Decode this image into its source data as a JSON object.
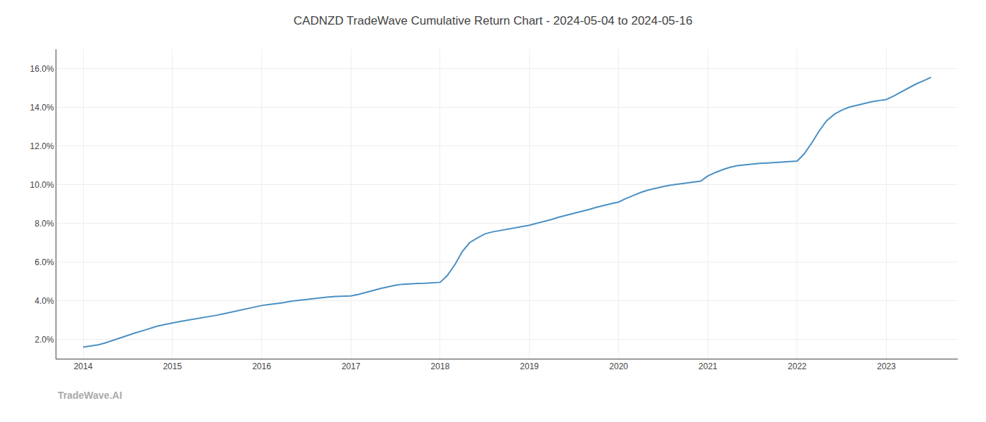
{
  "chart_data": {
    "type": "line",
    "title": "CADNZD TradeWave Cumulative Return Chart - 2024-05-04 to 2024-05-16",
    "annotations": [
      "TradeWave.AI"
    ],
    "color": "#4a90c4",
    "grid": true,
    "x": [
      2014.0,
      2014.08,
      2014.17,
      2014.25,
      2014.33,
      2014.42,
      2014.5,
      2014.58,
      2014.67,
      2014.75,
      2014.83,
      2014.92,
      2015.0,
      2015.08,
      2015.17,
      2015.25,
      2015.33,
      2015.42,
      2015.5,
      2015.58,
      2015.67,
      2015.75,
      2015.83,
      2015.92,
      2016.0,
      2016.08,
      2016.17,
      2016.25,
      2016.33,
      2016.42,
      2016.5,
      2016.58,
      2016.67,
      2016.75,
      2016.83,
      2016.92,
      2017.0,
      2017.08,
      2017.17,
      2017.25,
      2017.33,
      2017.42,
      2017.5,
      2017.58,
      2017.67,
      2017.75,
      2017.83,
      2017.92,
      2018.0,
      2018.08,
      2018.17,
      2018.25,
      2018.33,
      2018.42,
      2018.5,
      2018.58,
      2018.67,
      2018.75,
      2018.83,
      2018.92,
      2019.0,
      2019.08,
      2019.17,
      2019.25,
      2019.33,
      2019.42,
      2019.5,
      2019.58,
      2019.67,
      2019.75,
      2019.83,
      2019.92,
      2020.0,
      2020.08,
      2020.17,
      2020.25,
      2020.33,
      2020.42,
      2020.5,
      2020.58,
      2020.67,
      2020.75,
      2020.83,
      2020.92,
      2021.0,
      2021.08,
      2021.17,
      2021.25,
      2021.33,
      2021.42,
      2021.5,
      2021.58,
      2021.67,
      2021.75,
      2021.83,
      2021.92,
      2022.0,
      2022.08,
      2022.17,
      2022.25,
      2022.33,
      2022.42,
      2022.5,
      2022.58,
      2022.67,
      2022.75,
      2022.83,
      2022.92,
      2023.0,
      2023.08,
      2023.17,
      2023.25,
      2023.33,
      2023.42,
      2023.5
    ],
    "values": [
      1.6,
      1.65,
      1.72,
      1.82,
      1.95,
      2.08,
      2.2,
      2.33,
      2.45,
      2.57,
      2.68,
      2.77,
      2.85,
      2.92,
      2.99,
      3.05,
      3.11,
      3.18,
      3.25,
      3.33,
      3.42,
      3.52,
      3.6,
      3.68,
      3.75,
      3.8,
      3.85,
      3.9,
      3.97,
      4.02,
      4.07,
      4.12,
      4.16,
      4.19,
      4.22,
      4.24,
      4.25,
      4.32,
      4.42,
      4.53,
      4.63,
      4.72,
      4.8,
      4.85,
      4.88,
      4.89,
      4.9,
      4.92,
      4.95,
      5.3,
      5.9,
      6.55,
      7.0,
      7.25,
      7.45,
      7.55,
      7.63,
      7.7,
      7.77,
      7.84,
      7.9,
      8.0,
      8.1,
      8.2,
      8.32,
      8.42,
      8.52,
      8.62,
      8.72,
      8.83,
      8.93,
      9.02,
      9.1,
      9.28,
      9.45,
      9.6,
      9.72,
      9.82,
      9.9,
      9.97,
      10.03,
      10.09,
      10.13,
      10.18,
      10.45,
      10.62,
      10.78,
      10.9,
      10.98,
      11.03,
      11.07,
      11.1,
      11.12,
      11.14,
      11.16,
      11.18,
      11.22,
      11.6,
      12.2,
      12.8,
      13.3,
      13.65,
      13.85,
      14.0,
      14.1,
      14.2,
      14.28,
      14.35,
      14.4,
      14.58,
      14.8,
      15.0,
      15.2,
      15.38,
      15.55
    ],
    "xlim": [
      2013.7,
      2023.8
    ],
    "ylim": [
      1.0,
      17.0
    ],
    "xticks": [
      2014,
      2015,
      2016,
      2017,
      2018,
      2019,
      2020,
      2021,
      2022,
      2023
    ],
    "yticks": [
      {
        "value": 2.0,
        "label": "2.0%"
      },
      {
        "value": 4.0,
        "label": "4.0%"
      },
      {
        "value": 6.0,
        "label": "6.0%"
      },
      {
        "value": 8.0,
        "label": "8.0%"
      },
      {
        "value": 10.0,
        "label": "10.0%"
      },
      {
        "value": 12.0,
        "label": "12.0%"
      },
      {
        "value": 14.0,
        "label": "14.0%"
      },
      {
        "value": 16.0,
        "label": "16.0%"
      }
    ]
  }
}
